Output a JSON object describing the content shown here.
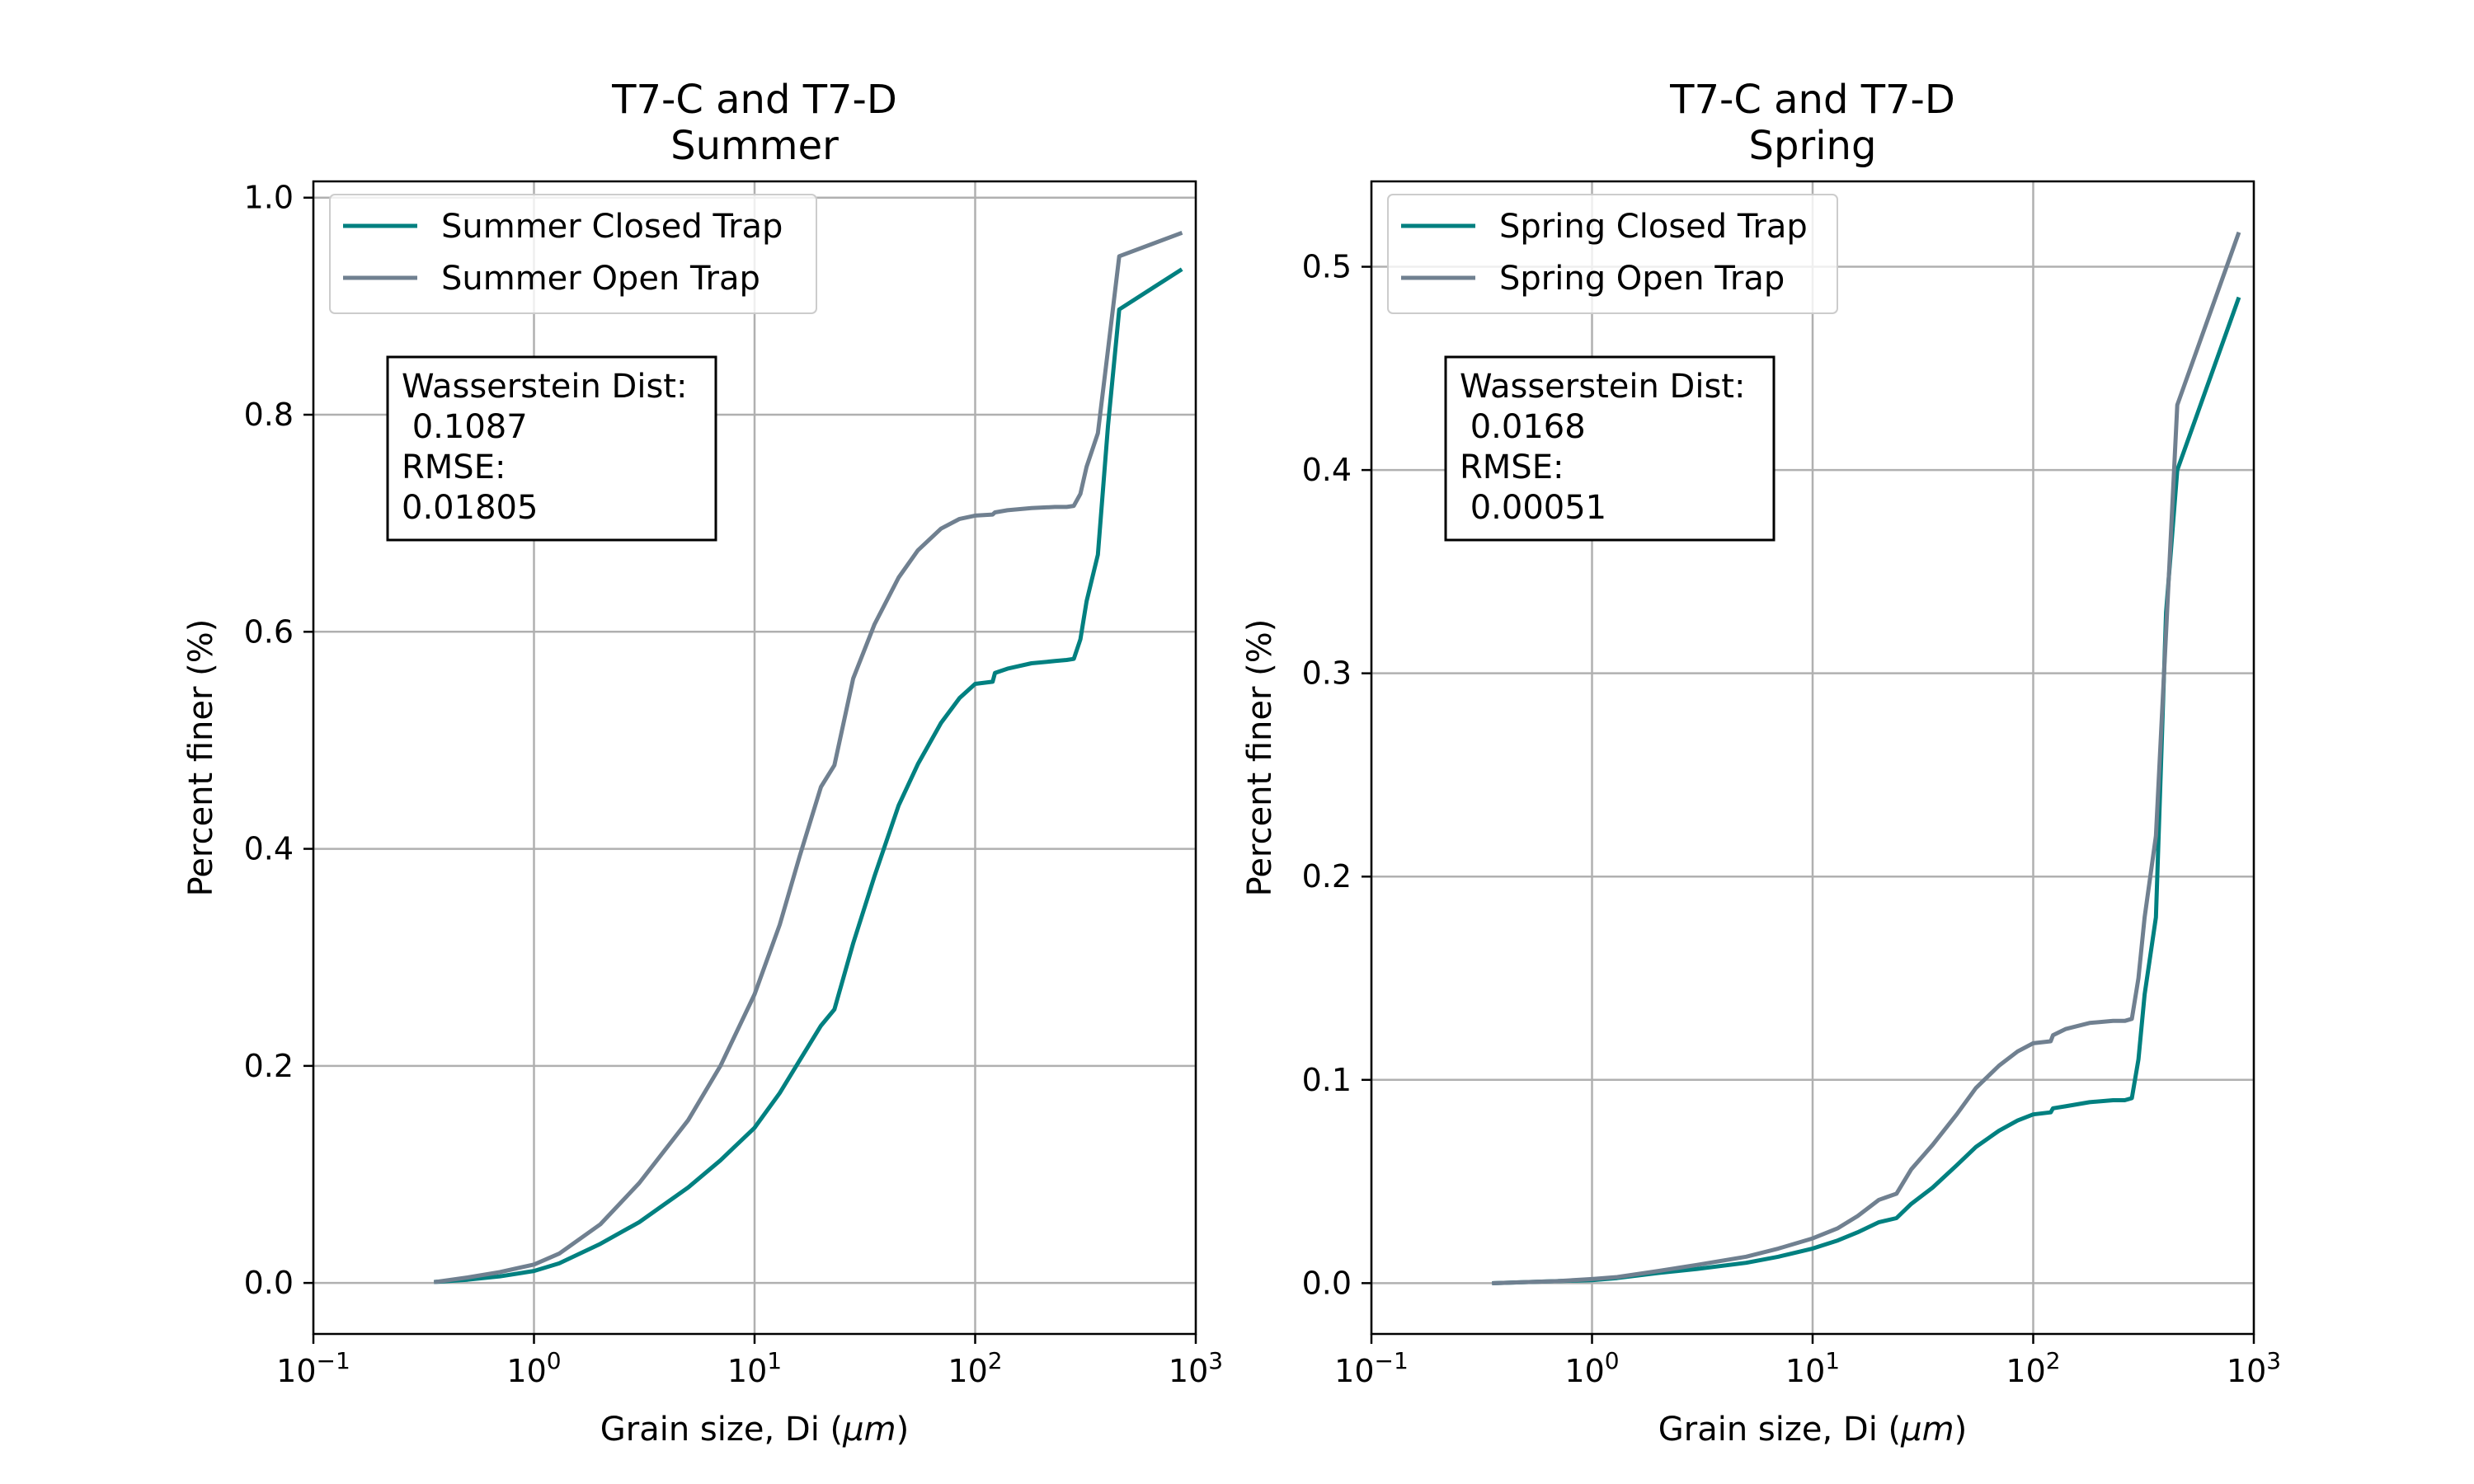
{
  "chart_data": [
    {
      "type": "line",
      "title": "T7-C and T7-D",
      "subtitle": "Summer",
      "xlabel_text": "Grain size, Di (",
      "xlabel_unit": "μm",
      "xlabel_close": ")",
      "ylabel": "Percent finer (%)",
      "x_scale": "log",
      "xlim": [
        0.1,
        1000
      ],
      "ylim": [
        -0.047,
        1.015
      ],
      "grid": true,
      "legend_position": "top-left",
      "x_ticks": [
        0.1,
        1,
        10,
        100,
        1000
      ],
      "x_tick_labels": [
        {
          "base": "10",
          "exp": "−1"
        },
        {
          "base": "10",
          "exp": "0"
        },
        {
          "base": "10",
          "exp": "1"
        },
        {
          "base": "10",
          "exp": "2"
        },
        {
          "base": "10",
          "exp": "3"
        }
      ],
      "y_ticks": [
        0.0,
        0.2,
        0.4,
        0.6,
        0.8,
        1.0
      ],
      "y_tick_labels": [
        "0.0",
        "0.2",
        "0.4",
        "0.6",
        "0.8",
        "1.0"
      ],
      "annotation": [
        "Wasserstein Dist:",
        " 0.1087",
        "RMSE:",
        "0.01805"
      ],
      "series": [
        {
          "name": "Summer Closed Trap",
          "color": "#008080",
          "x": [
            0.36,
            0.5,
            0.7,
            1.0,
            1.3,
            2.0,
            3.0,
            5.0,
            7.0,
            10.0,
            13.0,
            16.0,
            20.0,
            23.0,
            28.0,
            35.0,
            45.0,
            55.0,
            70.0,
            85.0,
            100.0,
            120.0,
            123.0,
            140.0,
            180.0,
            230.0,
            260.0,
            280.0,
            300.0,
            320.0,
            360.0,
            400.0,
            450.0,
            850.0
          ],
          "y": [
            0.001,
            0.003,
            0.006,
            0.011,
            0.018,
            0.036,
            0.056,
            0.088,
            0.113,
            0.143,
            0.175,
            0.205,
            0.237,
            0.252,
            0.313,
            0.375,
            0.44,
            0.478,
            0.516,
            0.539,
            0.552,
            0.554,
            0.562,
            0.566,
            0.571,
            0.573,
            0.574,
            0.575,
            0.593,
            0.628,
            0.671,
            0.79,
            0.897,
            0.933
          ]
        },
        {
          "name": "Summer Open Trap",
          "color": "#708090",
          "x": [
            0.36,
            0.5,
            0.7,
            1.0,
            1.3,
            2.0,
            3.0,
            5.0,
            7.0,
            10.0,
            13.0,
            16.0,
            20.0,
            23.0,
            28.0,
            35.0,
            45.0,
            55.0,
            70.0,
            85.0,
            100.0,
            120.0,
            123.0,
            140.0,
            180.0,
            230.0,
            260.0,
            280.0,
            300.0,
            320.0,
            360.0,
            400.0,
            450.0,
            850.0
          ],
          "y": [
            0.001,
            0.005,
            0.01,
            0.017,
            0.027,
            0.054,
            0.092,
            0.15,
            0.2,
            0.266,
            0.33,
            0.393,
            0.457,
            0.477,
            0.557,
            0.607,
            0.65,
            0.675,
            0.695,
            0.704,
            0.707,
            0.708,
            0.71,
            0.712,
            0.714,
            0.715,
            0.715,
            0.716,
            0.727,
            0.752,
            0.783,
            0.86,
            0.946,
            0.967
          ]
        }
      ]
    },
    {
      "type": "line",
      "title": "T7-C and T7-D",
      "subtitle": "Spring",
      "xlabel_text": "Grain size, Di (",
      "xlabel_unit": "μm",
      "xlabel_close": ")",
      "ylabel": "Percent finer (%)",
      "x_scale": "log",
      "xlim": [
        0.1,
        1000
      ],
      "ylim": [
        -0.025,
        0.542
      ],
      "grid": true,
      "legend_position": "top-left",
      "x_ticks": [
        0.1,
        1,
        10,
        100,
        1000
      ],
      "x_tick_labels": [
        {
          "base": "10",
          "exp": "−1"
        },
        {
          "base": "10",
          "exp": "0"
        },
        {
          "base": "10",
          "exp": "1"
        },
        {
          "base": "10",
          "exp": "2"
        },
        {
          "base": "10",
          "exp": "3"
        }
      ],
      "y_ticks": [
        0.0,
        0.1,
        0.2,
        0.3,
        0.4,
        0.5
      ],
      "y_tick_labels": [
        "0.0",
        "0.1",
        "0.2",
        "0.3",
        "0.4",
        "0.5"
      ],
      "annotation": [
        "Wasserstein Dist:",
        " 0.0168",
        "RMSE:",
        " 0.00051"
      ],
      "series": [
        {
          "name": "Spring Closed Trap",
          "color": "#008080",
          "x": [
            0.36,
            0.5,
            0.7,
            1.0,
            1.3,
            2.0,
            3.0,
            5.0,
            7.0,
            10.0,
            13.0,
            16.0,
            20.0,
            24.0,
            28.0,
            35.0,
            45.0,
            55.0,
            70.0,
            85.0,
            100.0,
            120.0,
            123.0,
            140.0,
            180.0,
            230.0,
            260.0,
            280.0,
            300.0,
            320.0,
            360.0,
            400.0,
            450.0,
            850.0
          ],
          "y": [
            0.0,
            0.0005,
            0.001,
            0.0015,
            0.0025,
            0.005,
            0.007,
            0.01,
            0.013,
            0.017,
            0.021,
            0.025,
            0.03,
            0.032,
            0.039,
            0.047,
            0.058,
            0.067,
            0.075,
            0.08,
            0.083,
            0.084,
            0.086,
            0.087,
            0.089,
            0.09,
            0.09,
            0.091,
            0.11,
            0.142,
            0.18,
            0.33,
            0.4,
            0.484
          ]
        },
        {
          "name": "Spring Open Trap",
          "color": "#708090",
          "x": [
            0.36,
            0.5,
            0.7,
            1.0,
            1.3,
            2.0,
            3.0,
            5.0,
            7.0,
            10.0,
            13.0,
            16.0,
            20.0,
            24.0,
            28.0,
            35.0,
            45.0,
            55.0,
            70.0,
            85.0,
            100.0,
            120.0,
            123.0,
            140.0,
            180.0,
            230.0,
            260.0,
            280.0,
            300.0,
            320.0,
            360.0,
            400.0,
            450.0,
            850.0
          ],
          "y": [
            0.0,
            0.0005,
            0.001,
            0.002,
            0.003,
            0.006,
            0.009,
            0.013,
            0.017,
            0.022,
            0.027,
            0.033,
            0.041,
            0.044,
            0.056,
            0.068,
            0.083,
            0.096,
            0.107,
            0.114,
            0.118,
            0.119,
            0.122,
            0.125,
            0.128,
            0.129,
            0.129,
            0.13,
            0.15,
            0.18,
            0.22,
            0.32,
            0.432,
            0.516
          ]
        }
      ]
    }
  ]
}
